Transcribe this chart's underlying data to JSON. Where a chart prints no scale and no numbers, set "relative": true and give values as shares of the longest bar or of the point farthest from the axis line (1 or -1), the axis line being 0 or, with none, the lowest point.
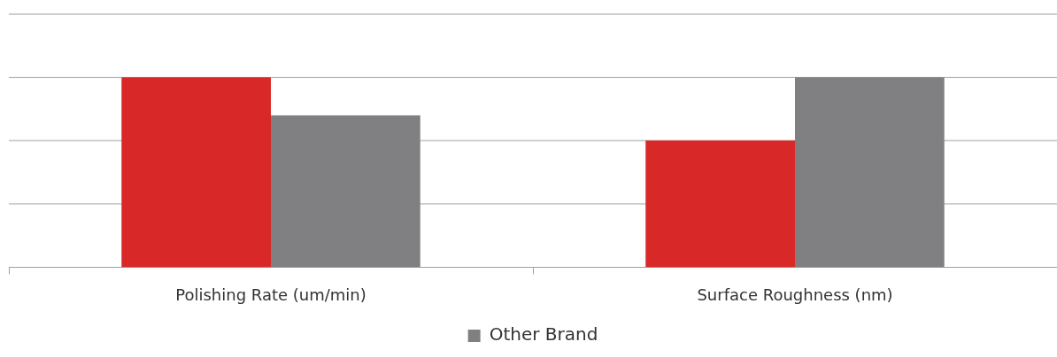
{
  "chart_data": {
    "type": "bar",
    "relative": true,
    "legend": "bottom",
    "categories": [
      "Polishing Rate (um/min)",
      "Surface Roughness (nm)"
    ],
    "series": [
      {
        "color": "#d92828",
        "values": [
          1,
          0.667
        ]
      },
      {
        "name": "Other Brand",
        "color": "#808083",
        "values": [
          0.8,
          1
        ]
      }
    ],
    "ref_lines": [
      {
        "axis": "y",
        "value": 0.333,
        "color": "#a0a0a0"
      },
      {
        "axis": "y",
        "value": 0.667,
        "color": "#a0a0a0"
      },
      {
        "axis": "y",
        "value": 1,
        "color": "#a0a0a0"
      },
      {
        "axis": "y",
        "value": 1.333,
        "color": "#a0a0a0"
      }
    ]
  }
}
